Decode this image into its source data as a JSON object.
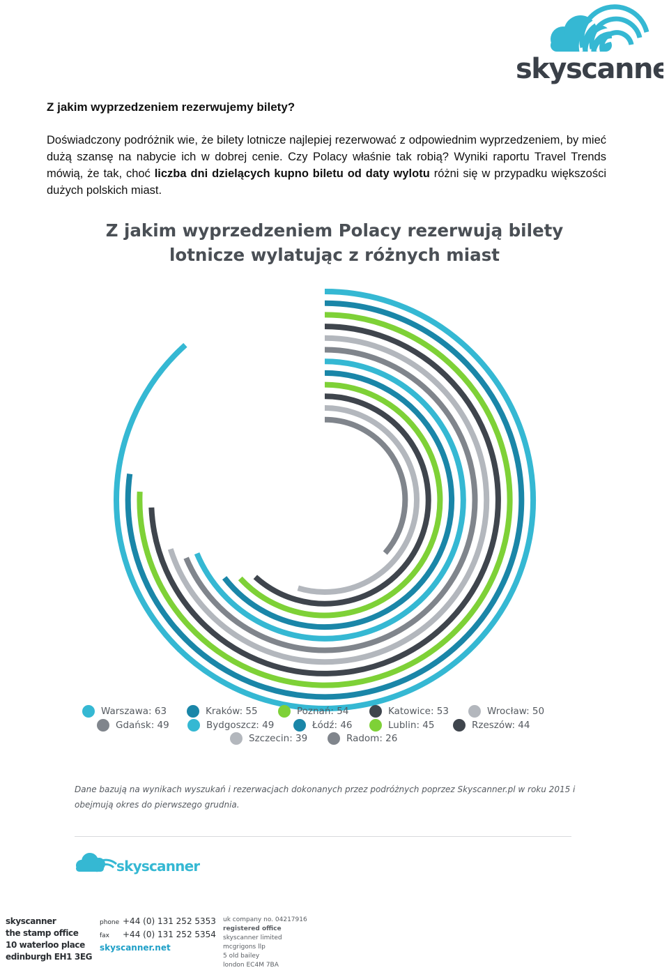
{
  "logo": {
    "brand": "skyscanner",
    "icon": "cloud-icon"
  },
  "heading": "Z jakim wyprzedzeniem rezerwujemy bilety?",
  "intro": {
    "part1": "Doświadczony podróżnik wie, że bilety lotnicze najlepiej rezerwować z odpowiednim wyprzedzeniem, by mieć dużą szansę na nabycie ich w dobrej cenie. Czy Polacy właśnie tak robią? Wyniki raportu Travel Trends mówią, że tak, choć ",
    "bold": "liczba dni dzielących kupno biletu od daty wylotu",
    "part2": " różni się w przypadku większości dużych polskich miast."
  },
  "infographic": {
    "title_line1": "Z jakim wyprzedzeniem Polacy rezerwują bilety",
    "title_line2": "lotnicze wylatując z różnych miast",
    "note": "Dane bazują na wynikach wyszukań i rezerwacjach dokonanych przez podróżnych poprzez Skyscanner.pl w roku 2015 i obejmują okres do pierwszego grudnia."
  },
  "colors": {
    "cyan": "#35b8d3",
    "blue": "#1a86a8",
    "green": "#7ed137",
    "dark": "#3f454d",
    "light": "#b3b7bd",
    "gray": "#80858c"
  },
  "chart_data": {
    "type": "radial-bar",
    "unit": "dni",
    "series": [
      {
        "name": "Warszawa",
        "value": 63,
        "label": "Warszawa: 63",
        "color": "#35b8d3"
      },
      {
        "name": "Kraków",
        "value": 55,
        "label": "Kraków: 55",
        "color": "#1a86a8"
      },
      {
        "name": "Poznań",
        "value": 54,
        "label": "Poznań: 54",
        "color": "#7ed137"
      },
      {
        "name": "Katowice",
        "value": 53,
        "label": "Katowice: 53",
        "color": "#3f454d"
      },
      {
        "name": "Wrocław",
        "value": 50,
        "label": "Wrocław: 50",
        "color": "#b3b7bd"
      },
      {
        "name": "Gdańsk",
        "value": 49,
        "label": "Gdańsk: 49",
        "color": "#80858c"
      },
      {
        "name": "Bydgoszcz",
        "value": 49,
        "label": "Bydgoszcz: 49",
        "color": "#35b8d3"
      },
      {
        "name": "Łódź",
        "value": 46,
        "label": "Łódź: 46",
        "color": "#1a86a8"
      },
      {
        "name": "Lublin",
        "value": 45,
        "label": "Lublin: 45",
        "color": "#7ed137"
      },
      {
        "name": "Rzeszów",
        "value": 44,
        "label": "Rzeszów: 44",
        "color": "#3f454d"
      },
      {
        "name": "Szczecin",
        "value": 39,
        "label": "Szczecin: 39",
        "color": "#b3b7bd"
      },
      {
        "name": "Radom",
        "value": 26,
        "label": "Radom: 26",
        "color": "#80858c"
      }
    ],
    "max_value": 63
  },
  "footer": {
    "address": [
      "skyscanner",
      "the stamp office",
      "10 waterloo place",
      "edinburgh EH1 3EG"
    ],
    "phone_label": "phone",
    "phone": "+44 (0) 131 252 5353",
    "fax_label": "fax",
    "fax": "+44 (0) 131 252 5354",
    "website": "skyscanner.net",
    "company_no": "uk company no. 04217916",
    "registered_label": "registered office",
    "registered": [
      "skyscanner limited",
      "mcgrigons llp",
      "5 old bailey",
      "london EC4M 7BA"
    ]
  }
}
